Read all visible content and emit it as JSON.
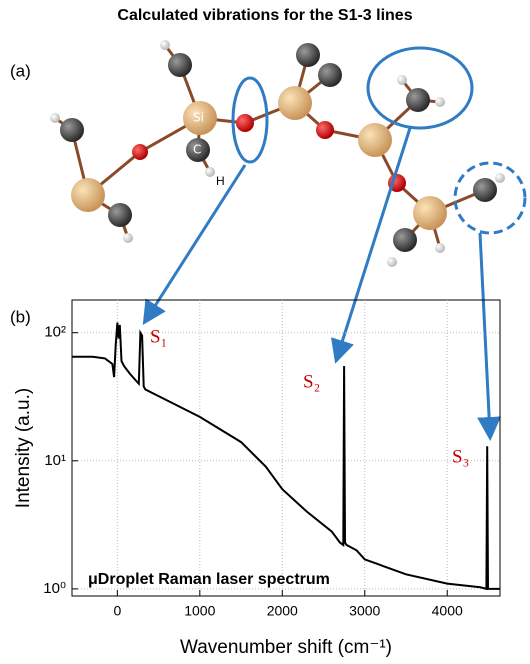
{
  "header": {
    "title": "Calculated vibrations for the S1-3 lines"
  },
  "figure": {
    "panel_a": "(a)",
    "panel_b": "(b)",
    "atoms": [
      "Si",
      "C",
      "H"
    ]
  },
  "chart_data": {
    "type": "line",
    "xlabel": "Wavenumber shift (cm⁻¹)",
    "ylabel": "Intensity (a.u.)",
    "annotations": [
      "S₁",
      "S₂",
      "S₃",
      "μDroplet Raman laser spectrum"
    ],
    "color": "#000000",
    "log_y": true,
    "grid": true,
    "xlim": [
      -550,
      4640
    ],
    "ylim": [
      0.88,
      180
    ],
    "xticks": [
      0,
      1000,
      2000,
      3000,
      4000
    ],
    "yticks": [
      {
        "value": 1,
        "label": "10⁰"
      },
      {
        "value": 10,
        "label": "10¹"
      },
      {
        "value": 100,
        "label": "10²"
      }
    ],
    "x": [
      -550,
      -300,
      -150,
      -60,
      -40,
      -20,
      0,
      15,
      30,
      50,
      80,
      150,
      230,
      260,
      280,
      300,
      320,
      340,
      500,
      1000,
      1500,
      1800,
      2000,
      2300,
      2600,
      2700,
      2740,
      2750,
      2760,
      2780,
      2900,
      3000,
      3500,
      4000,
      4400,
      4475,
      4485,
      4495,
      4640
    ],
    "values": [
      65,
      65,
      63,
      57,
      45,
      80,
      120,
      90,
      115,
      60,
      55,
      48,
      42,
      40,
      100,
      95,
      38,
      36,
      32,
      22,
      14,
      9,
      6,
      4,
      2.8,
      2.3,
      2.2,
      55,
      2.3,
      2.2,
      2.0,
      1.7,
      1.3,
      1.1,
      1.03,
      1.0,
      13,
      1.0,
      1.0
    ]
  }
}
